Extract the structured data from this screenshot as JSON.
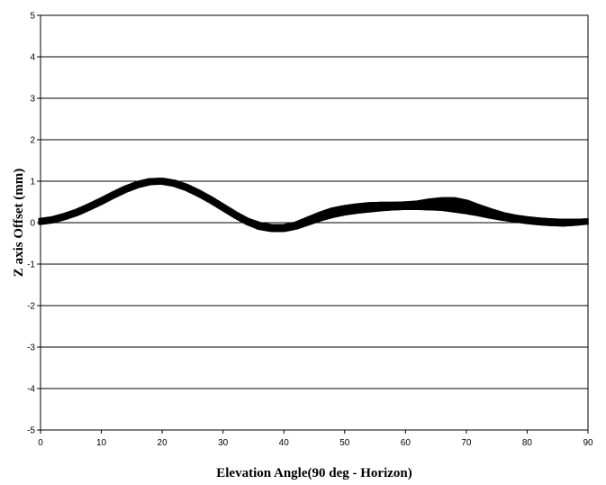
{
  "chart_data": {
    "type": "scatter",
    "title": "",
    "xlabel": "Elevation Angle(90 deg - Horizon)",
    "ylabel": "Z axis Offset (mm)",
    "xlim": [
      0,
      90
    ],
    "ylim": [
      -5,
      5
    ],
    "x_ticks": [
      0,
      10,
      20,
      30,
      40,
      50,
      60,
      70,
      80,
      90
    ],
    "y_ticks": [
      5,
      4,
      3,
      2,
      1,
      0,
      -1,
      -2,
      -3,
      -4,
      -5
    ],
    "grid": "horizontal",
    "legend": "none",
    "marker_color": "#000000",
    "series": [
      {
        "x": [
          0,
          2,
          4,
          6,
          8,
          10,
          12,
          14,
          16,
          18,
          20,
          22,
          24,
          26,
          28,
          30,
          32,
          34,
          36,
          38,
          40,
          42,
          44,
          46,
          48,
          50,
          52,
          54,
          56,
          58,
          60,
          62,
          64,
          66,
          68,
          70,
          72,
          74,
          76,
          78,
          80,
          82,
          84,
          86,
          88,
          90
        ],
        "y": [
          0.03,
          0.07,
          0.15,
          0.25,
          0.38,
          0.52,
          0.67,
          0.81,
          0.92,
          0.99,
          1.0,
          0.95,
          0.85,
          0.71,
          0.55,
          0.37,
          0.19,
          0.03,
          -0.08,
          -0.13,
          -0.13,
          -0.07,
          0.04,
          0.15,
          0.24,
          0.3,
          0.34,
          0.37,
          0.39,
          0.4,
          0.41,
          0.42,
          0.44,
          0.45,
          0.43,
          0.38,
          0.3,
          0.22,
          0.15,
          0.1,
          0.06,
          0.03,
          0.01,
          0.0,
          0.01,
          0.03
        ],
        "spread": [
          0.04,
          0.04,
          0.04,
          0.04,
          0.04,
          0.04,
          0.04,
          0.04,
          0.04,
          0.04,
          0.04,
          0.04,
          0.04,
          0.04,
          0.04,
          0.04,
          0.04,
          0.04,
          0.05,
          0.05,
          0.05,
          0.05,
          0.06,
          0.07,
          0.08,
          0.08,
          0.08,
          0.08,
          0.07,
          0.06,
          0.06,
          0.07,
          0.1,
          0.12,
          0.14,
          0.13,
          0.1,
          0.08,
          0.06,
          0.05,
          0.05,
          0.05,
          0.05,
          0.05,
          0.04,
          0.03
        ]
      }
    ]
  }
}
